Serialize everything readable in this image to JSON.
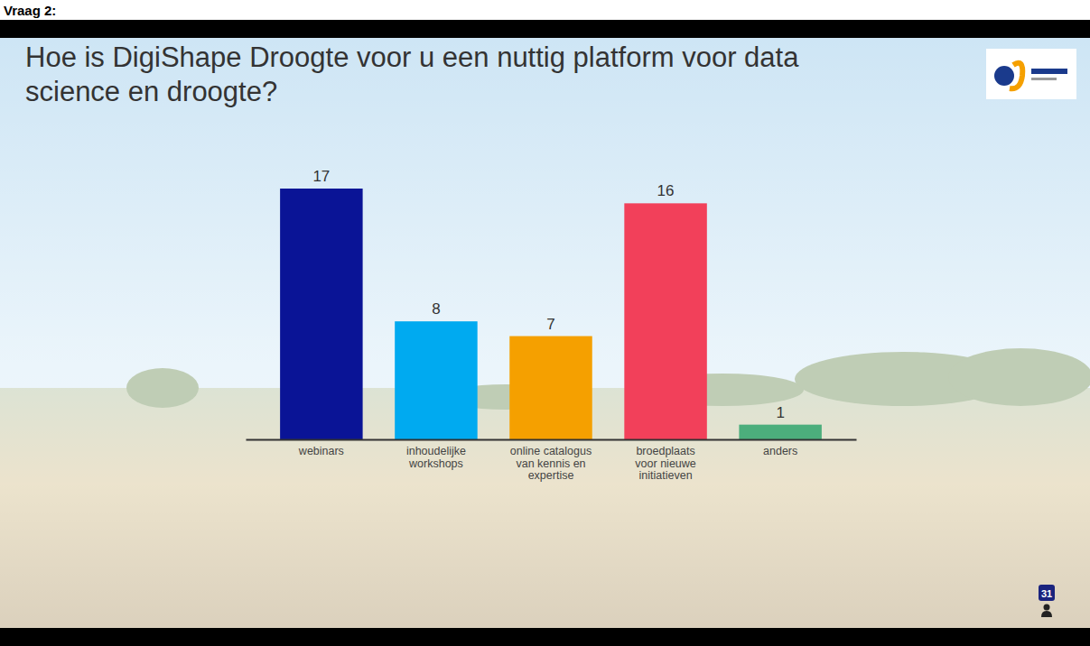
{
  "chart_data": {
    "type": "bar",
    "title": "Hoe is DigiShape Droogte voor u een nuttig platform voor data science en droogte?",
    "categories": [
      "webinars",
      "inhoudelijke workshops",
      "online catalogus van kennis en expertise",
      "broedplaats voor nieuwe initiatieven",
      "anders"
    ],
    "values": [
      17,
      8,
      7,
      16,
      1
    ],
    "colors": [
      "#0a1496",
      "#00aaf0",
      "#f5a000",
      "#f2405a",
      "#4cae7c"
    ],
    "ylim": [
      0,
      17
    ],
    "data_labels": true,
    "tick_labels": "x",
    "annotations": [
      "Vraag 2:",
      "31"
    ]
  }
}
